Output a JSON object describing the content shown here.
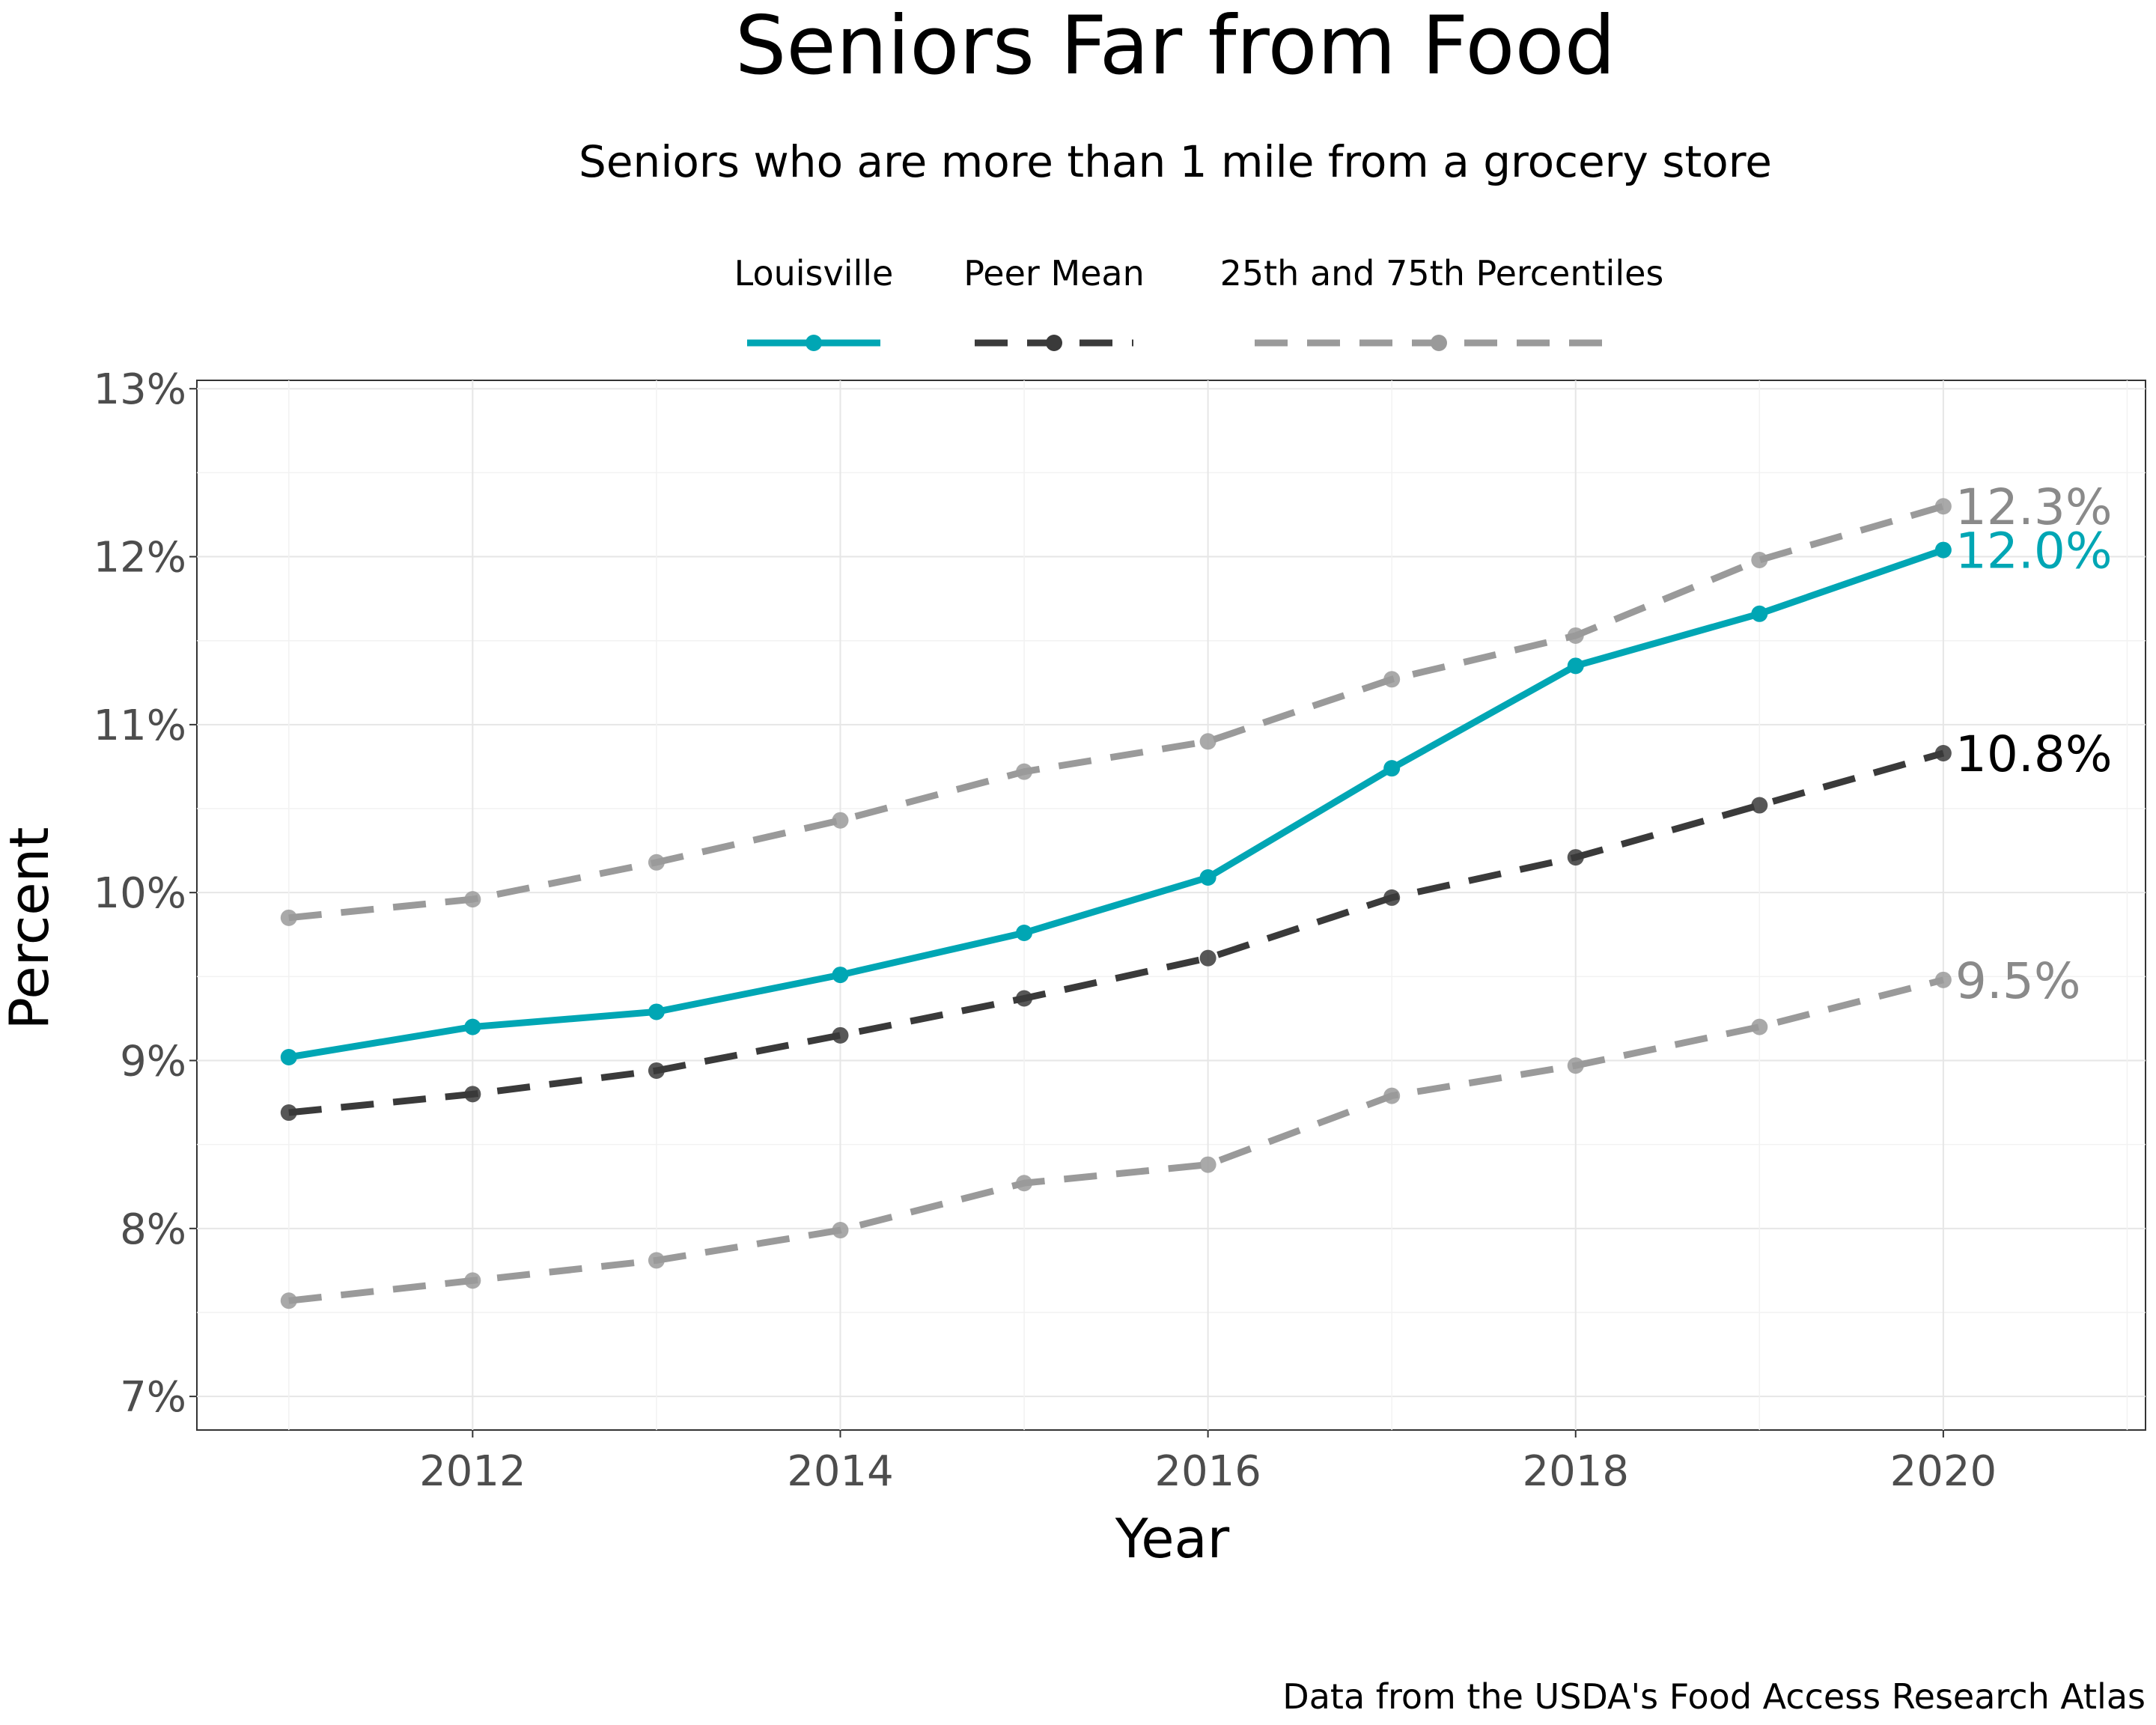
{
  "chart_data": {
    "type": "line",
    "title": "Seniors Far from Food",
    "subtitle": "Seniors who are more than 1 mile from a grocery store",
    "xlabel": "Year",
    "ylabel": "Percent",
    "caption": "Data from the USDA's Food Access Research Atlas",
    "x": [
      2011,
      2012,
      2013,
      2014,
      2015,
      2016,
      2017,
      2018,
      2019,
      2020
    ],
    "xlim": [
      2010.5,
      2021.1
    ],
    "ylim": [
      6.8,
      13.05
    ],
    "x_ticks": [
      2012,
      2014,
      2016,
      2018,
      2020
    ],
    "x_tick_labels": [
      "2012",
      "2014",
      "2016",
      "2018",
      "2020"
    ],
    "y_ticks": [
      7,
      8,
      9,
      10,
      11,
      12,
      13
    ],
    "y_tick_labels": [
      "7%",
      "8%",
      "9%",
      "10%",
      "11%",
      "12%",
      "13%"
    ],
    "grid": true,
    "legend_position": "top",
    "series": [
      {
        "name": "Louisville",
        "values": [
          9.02,
          9.2,
          9.29,
          9.51,
          9.76,
          10.09,
          10.74,
          11.35,
          11.66,
          12.04
        ],
        "color": "#00a6b4",
        "style": "solid",
        "end_label": "12.0%"
      },
      {
        "name": "Peer Mean",
        "values": [
          8.69,
          8.8,
          8.94,
          9.15,
          9.37,
          9.61,
          9.97,
          10.21,
          10.52,
          10.83
        ],
        "color": "#3a3a3a",
        "style": "dashed",
        "end_label": "10.8%"
      },
      {
        "name": "25th and 75th Percentiles",
        "part": "75th",
        "values": [
          9.85,
          9.96,
          10.18,
          10.43,
          10.72,
          10.9,
          11.27,
          11.53,
          11.98,
          12.3
        ],
        "color": "#9a9a9a",
        "style": "dashed",
        "end_label": "12.3%"
      },
      {
        "name": "25th and 75th Percentiles",
        "part": "25th",
        "values": [
          7.57,
          7.69,
          7.81,
          7.99,
          8.27,
          8.38,
          8.79,
          8.97,
          9.2,
          9.48
        ],
        "color": "#9a9a9a",
        "style": "dashed",
        "end_label": "9.5%"
      }
    ],
    "legend": [
      {
        "label": "Louisville",
        "color": "#00a6b4",
        "style": "solid"
      },
      {
        "label": "Peer Mean",
        "color": "#3a3a3a",
        "style": "dashed"
      },
      {
        "label": "25th and 75th Percentiles",
        "color": "#9a9a9a",
        "style": "dashed"
      }
    ],
    "end_label_colors": [
      "#00a6b4",
      "#000000",
      "#8a8a8a",
      "#8a8a8a"
    ]
  }
}
